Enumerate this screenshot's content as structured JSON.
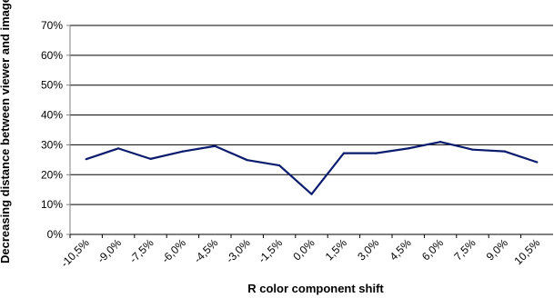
{
  "chart_data": {
    "type": "line",
    "title": "",
    "xlabel": "R color component shift",
    "ylabel": "Decreasing distance between viewer and image",
    "categories": [
      "-10,5%",
      "-9,0%",
      "-7,5%",
      "-6,0%",
      "-4,5%",
      "-3,0%",
      "-1,5%",
      "0,0%",
      "1,5%",
      "3,0%",
      "4,5%",
      "6,0%",
      "7,5%",
      "9,0%",
      "10,5%"
    ],
    "series": [
      {
        "values": [
          25.2,
          28.8,
          25.3,
          27.8,
          29.6,
          24.9,
          23.1,
          13.5,
          27.2,
          27.2,
          28.8,
          31.0,
          28.4,
          27.8,
          24.2
        ]
      }
    ],
    "yticks": [
      "0%",
      "10%",
      "20%",
      "30%",
      "40%",
      "50%",
      "60%",
      "70%"
    ],
    "ylim": [
      0,
      70
    ],
    "grid": true,
    "legend": "none",
    "line_color": "#0b1b6e"
  }
}
